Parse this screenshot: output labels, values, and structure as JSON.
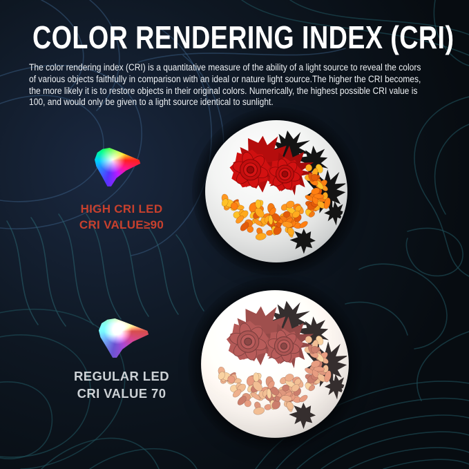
{
  "page": {
    "title": "COLOR RENDERING INDEX (CRI)",
    "description_lines": [
      "The color rendering index (CRI) is a quantitative measure of the ability of a light source to reveal the colors",
      "of various objects faithfully in comparison with an ideal or nature light source.The higher the CRI becomes,",
      "the more likely it is to restore objects in their original colors. Numerically, the highest possible CRI value is",
      "100, and would only be given to a light source identical to sunlight."
    ]
  },
  "comparison": {
    "high_cri": {
      "label_line1": "HIGH CRI LED",
      "label_line2": "CRI VALUE≥90",
      "icon": "color-gamut-triangle-icon",
      "example": "vivid red roses with orange petals inside white bulb"
    },
    "regular": {
      "label_line1": "REGULAR LED",
      "label_line2": "CRI VALUE 70",
      "icon": "color-gamut-triangle-muted-icon",
      "example": "same bouquet with faded, desaturated colors inside white bulb"
    }
  },
  "theme": {
    "background_top": "#121c2c",
    "background_bottom": "#070c11",
    "contour_teal": "#1f4f58",
    "contour_blue": "#3a5d84",
    "contour_bright": "#2a6470",
    "title_color": "#ffffff",
    "body_text_color": "#eef1f4",
    "high_cri_label_color": "#c8402d",
    "regular_label_color": "#ccd1d5",
    "rose_red": "#cf1010",
    "leaf_black": "#141414",
    "flower_palette": [
      "#f47a13",
      "#ff9820",
      "#e35b0a",
      "#ffc228",
      "#ffaa1e",
      "#ff7f12"
    ]
  }
}
